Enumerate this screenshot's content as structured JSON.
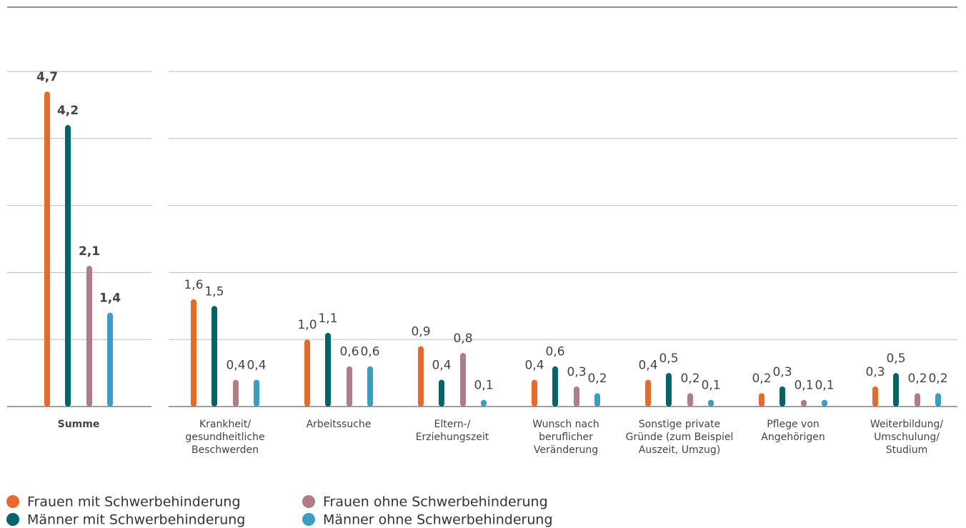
{
  "chart_data": {
    "type": "bar",
    "categories": [
      [
        "Summe"
      ],
      [
        "Krankheit/",
        "gesundheitliche",
        "Beschwerden"
      ],
      [
        "Arbeitssuche"
      ],
      [
        "Eltern-/",
        "Erziehungszeit"
      ],
      [
        "Wunsch nach",
        "beruflicher",
        "Veränderung"
      ],
      [
        "Sonstige private",
        "Gründe (zum Beispiel",
        "Auszeit, Umzug)"
      ],
      [
        "Pflege von",
        "Angehörigen"
      ],
      [
        "Weiterbildung/",
        "Umschulung/",
        "Studium"
      ]
    ],
    "series": [
      {
        "name": "Frauen mit Schwerbehinderung",
        "color": "#e8692c",
        "values": [
          4.7,
          1.6,
          1.0,
          0.9,
          0.4,
          0.4,
          0.2,
          0.3
        ],
        "value_labels": [
          "4,7",
          "1,6",
          "1,0",
          "0,9",
          "0,4",
          "0,4",
          "0,2",
          "0,3"
        ]
      },
      {
        "name": "Männer mit Schwerbehinderung",
        "color": "#00656b",
        "values": [
          4.2,
          1.5,
          1.1,
          0.4,
          0.6,
          0.5,
          0.3,
          0.5
        ],
        "value_labels": [
          "4,2",
          "1,5",
          "1,1",
          "0,4",
          "0,6",
          "0,5",
          "0,3",
          "0,5"
        ]
      },
      {
        "name": "Frauen ohne Schwerbehinderung",
        "color": "#b07c86",
        "values": [
          2.1,
          0.4,
          0.6,
          0.8,
          0.3,
          0.2,
          0.1,
          0.2
        ],
        "value_labels": [
          "2,1",
          "0,4",
          "0,6",
          "0,8",
          "0,3",
          "0,2",
          "0,1",
          "0,2"
        ]
      },
      {
        "name": "Männer ohne Schwerbehinderung",
        "color": "#3c9dc4",
        "values": [
          1.4,
          0.4,
          0.6,
          0.1,
          0.2,
          0.1,
          0.1,
          0.2
        ],
        "value_labels": [
          "1,4",
          "0,4",
          "0,6",
          "0,1",
          "0,2",
          "0,1",
          "0,1",
          "0,2"
        ]
      }
    ],
    "ylim": [
      0,
      5
    ],
    "yticks": [
      0,
      1,
      2,
      3,
      4,
      5
    ],
    "grid": true,
    "show_ytick_labels": false
  }
}
